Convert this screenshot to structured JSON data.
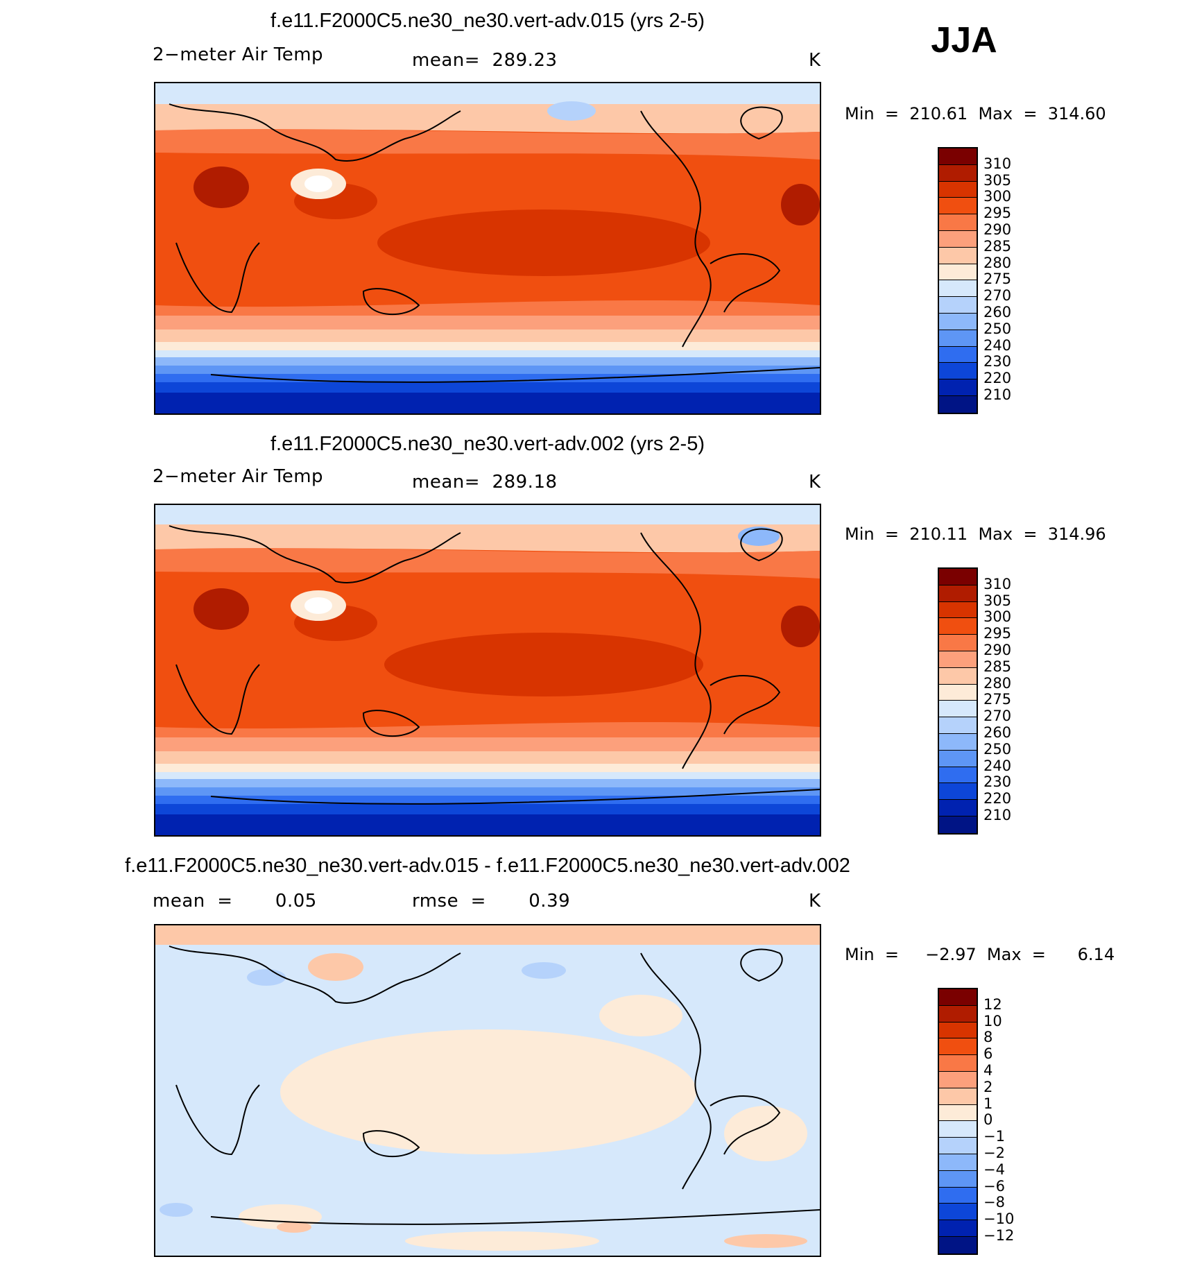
{
  "season": "JJA",
  "panels": [
    {
      "title": "f.e11.F2000C5.ne30_ne30.vert-adv.015 (yrs 2-5)",
      "left_label": "2−meter Air Temp",
      "center_label": "mean=  289.23",
      "units": "K",
      "minmax": "Min  =  210.61  Max  =  314.60",
      "colorbar": {
        "labels": [
          "310",
          "305",
          "300",
          "295",
          "290",
          "285",
          "280",
          "275",
          "270",
          "260",
          "250",
          "240",
          "230",
          "220",
          "210"
        ],
        "colors": [
          "#7a0000",
          "#b01c00",
          "#d83400",
          "#f04f10",
          "#f97846",
          "#fca07c",
          "#fdc8a8",
          "#fdebd8",
          "#d6e8fb",
          "#b5d2fb",
          "#8db8fa",
          "#5e96f5",
          "#2f6df0",
          "#0d46d8",
          "#0022b0",
          "#001485"
        ]
      }
    },
    {
      "title": "f.e11.F2000C5.ne30_ne30.vert-adv.002 (yrs 2-5)",
      "left_label": "2−meter Air Temp",
      "center_label": "mean=  289.18",
      "units": "K",
      "minmax": "Min  =  210.11  Max  =  314.96",
      "colorbar": {
        "labels": [
          "310",
          "305",
          "300",
          "295",
          "290",
          "285",
          "280",
          "275",
          "270",
          "260",
          "250",
          "240",
          "230",
          "220",
          "210"
        ],
        "colors": [
          "#7a0000",
          "#b01c00",
          "#d83400",
          "#f04f10",
          "#f97846",
          "#fca07c",
          "#fdc8a8",
          "#fdebd8",
          "#d6e8fb",
          "#b5d2fb",
          "#8db8fa",
          "#5e96f5",
          "#2f6df0",
          "#0d46d8",
          "#0022b0",
          "#001485"
        ]
      }
    },
    {
      "title": "f.e11.F2000C5.ne30_ne30.vert-adv.015 - f.e11.F2000C5.ne30_ne30.vert-adv.002",
      "left_label": "mean  =       0.05",
      "center_label": "rmse  =       0.39",
      "units": "K",
      "minmax": "Min  =     −2.97  Max  =      6.14",
      "colorbar": {
        "labels": [
          "12",
          "10",
          "8",
          "6",
          "4",
          "2",
          "1",
          "0",
          "−1",
          "−2",
          "−4",
          "−6",
          "−8",
          "−10",
          "−12"
        ],
        "colors": [
          "#7a0000",
          "#b01c00",
          "#d83400",
          "#f04f10",
          "#f97846",
          "#fca07c",
          "#fdc8a8",
          "#fdebd8",
          "#d6e8fb",
          "#b5d2fb",
          "#8db8fa",
          "#5e96f5",
          "#2f6df0",
          "#0d46d8",
          "#0022b0",
          "#001485"
        ]
      }
    }
  ]
}
